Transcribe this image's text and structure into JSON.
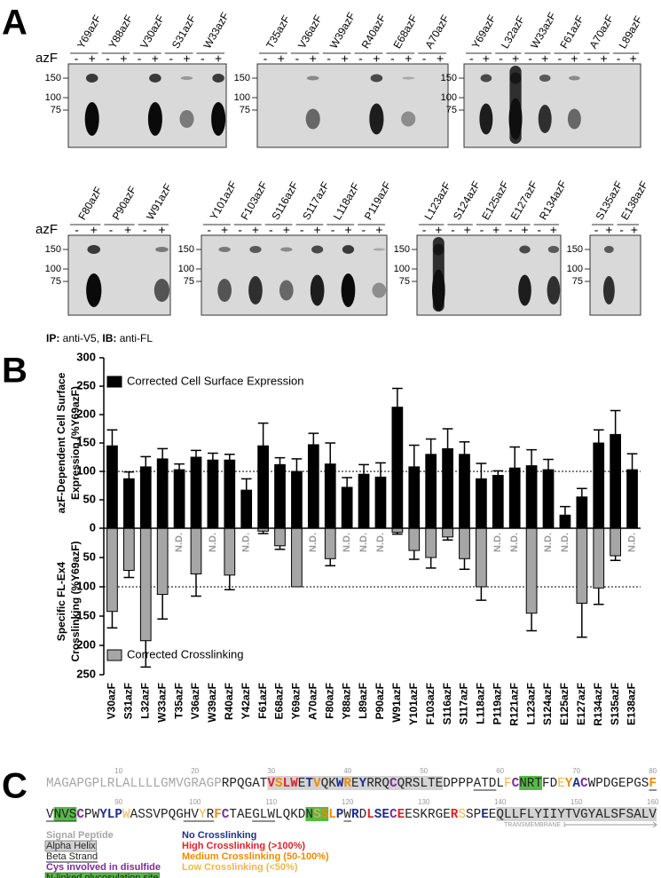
{
  "panel_a": {
    "label": "A",
    "row_label": "azF",
    "lane_signs": [
      "-",
      "+"
    ],
    "blots": [
      {
        "labels": [
          "Y69azF",
          "Y88azF",
          "V30azF",
          "S31azF",
          "W33azF"
        ],
        "markers": [
          "150",
          "100",
          "75"
        ]
      },
      {
        "labels": [
          "T35azF",
          "V36azF",
          "W39azF",
          "R40azF",
          "E68azF",
          "A70azF"
        ],
        "markers": [
          "150",
          "100",
          "75"
        ]
      },
      {
        "labels": [
          "Y69azF",
          "L32azF",
          "W33azF",
          "F61azF",
          "A70azF",
          "L89azF"
        ],
        "markers": [
          "150",
          "100",
          "75"
        ]
      },
      {
        "labels": [
          "F80azF",
          "P90azF",
          "W91azF"
        ],
        "markers": [
          "150",
          "100",
          "75"
        ]
      },
      {
        "labels": [
          "Y101azF",
          "F103azF",
          "S116azF",
          "S117azF",
          "L118azF",
          "P119azF"
        ],
        "markers": [
          "150",
          "100",
          "75"
        ]
      },
      {
        "labels": [
          "L123azF",
          "S124azF",
          "E125azF",
          "E127azF",
          "R134azF"
        ],
        "markers": [
          "150",
          "100",
          "75"
        ]
      },
      {
        "labels": [
          "S135azF",
          "E138azF"
        ],
        "markers": [
          "150",
          "100",
          "75"
        ]
      }
    ],
    "caption": [
      {
        "text": "IP:",
        "bold": true
      },
      {
        "text": " anti-V5, ",
        "bold": false
      },
      {
        "text": "IB:",
        "bold": true
      },
      {
        "text": " anti-FL",
        "bold": false
      }
    ]
  },
  "chart_data": {
    "type": "bar",
    "label": "B",
    "categories": [
      "V30azF",
      "S31azF",
      "L32azF",
      "W33azF",
      "T35azF",
      "V36azF",
      "W39azF",
      "R40azF",
      "Y42azF",
      "F61azF",
      "E68azF",
      "Y69azF",
      "A70azF",
      "F80azF",
      "Y88azF",
      "L89azF",
      "P90azF",
      "W91azF",
      "Y101azF",
      "F103azF",
      "S116azF",
      "S117azF",
      "L118azF",
      "P119azF",
      "R121azF",
      "L123azF",
      "S124azF",
      "E125azF",
      "E127azF",
      "R134azF",
      "S135azF",
      "E138azF"
    ],
    "series": [
      {
        "name": "Corrected Cell Surface Expression",
        "color": "#000000",
        "axis": "y",
        "values": [
          145,
          87,
          108,
          122,
          103,
          125,
          120,
          120,
          67,
          145,
          112,
          100,
          147,
          113,
          72,
          95,
          90,
          213,
          108,
          130,
          140,
          130,
          87,
          93,
          106,
          110,
          103,
          23,
          55,
          150,
          165,
          103
        ],
        "errors": [
          28,
          12,
          18,
          18,
          10,
          12,
          12,
          10,
          20,
          40,
          12,
          22,
          20,
          37,
          17,
          17,
          25,
          33,
          38,
          27,
          35,
          22,
          27,
          8,
          37,
          28,
          18,
          15,
          15,
          23,
          42,
          28
        ]
      },
      {
        "name": "Corrected Crosslinking",
        "color": "#a6a6a6",
        "axis": "y2",
        "na_label": "N.D.",
        "values": [
          142,
          72,
          192,
          113,
          null,
          78,
          null,
          80,
          null,
          5,
          30,
          100,
          null,
          52,
          null,
          null,
          null,
          7,
          38,
          50,
          15,
          52,
          100,
          null,
          null,
          145,
          null,
          null,
          128,
          102,
          47,
          null
        ],
        "errors": [
          28,
          12,
          45,
          42,
          null,
          38,
          null,
          25,
          null,
          4,
          6,
          null,
          null,
          12,
          null,
          null,
          null,
          3,
          15,
          18,
          5,
          18,
          23,
          null,
          null,
          30,
          null,
          null,
          58,
          28,
          8,
          null
        ]
      }
    ],
    "ylabel": [
      "azF-Dependent Cell Surface",
      "Expression (%Y69azF)"
    ],
    "y2label": [
      "Specific FL-Ex4",
      "Crosslinking (%Y69azF)"
    ],
    "ylim": [
      0,
      300
    ],
    "yticks": [
      0,
      50,
      100,
      150,
      200,
      250,
      300
    ],
    "y2lim": [
      0,
      250
    ],
    "y2ticks": [
      50,
      100,
      150,
      200,
      250
    ],
    "y2_inverted": true,
    "ref_line": 100,
    "y2_ref_line": 100
  },
  "panel_c": {
    "label": "C",
    "lines": [
      {
        "segments": [
          {
            "text": "MAGAPGPLRLALLLLGMVGRAGP",
            "style": "signal"
          },
          {
            "text": "RPQGAT",
            "style": "plain"
          },
          {
            "text": "V",
            "style": "helix high"
          },
          {
            "text": "S",
            "style": "helix medium"
          },
          {
            "text": "LW",
            "style": "helix high"
          },
          {
            "text": "E",
            "style": "helix plain"
          },
          {
            "text": "T",
            "style": "helix none"
          },
          {
            "text": "V",
            "style": "helix medium"
          },
          {
            "text": "QK",
            "style": "helix plain"
          },
          {
            "text": "W",
            "style": "helix none"
          },
          {
            "text": "R",
            "style": "helix medium"
          },
          {
            "text": "E",
            "style": "helix plain"
          },
          {
            "text": "Y",
            "style": "helix none"
          },
          {
            "text": "RRQ",
            "style": "helix plain"
          },
          {
            "text": "C",
            "style": "helix cys"
          },
          {
            "text": "QRSLTE",
            "style": "helix plain"
          },
          {
            "text": "DPPP",
            "style": "plain"
          },
          {
            "text": "ATD",
            "style": "strand plain"
          },
          {
            "text": "L",
            "style": "plain"
          },
          {
            "text": "F",
            "style": "low"
          },
          {
            "text": "C",
            "style": "cys"
          },
          {
            "text": "NRT",
            "style": "glyco plain"
          },
          {
            "text": "FD",
            "style": "plain"
          },
          {
            "text": "E",
            "style": "low"
          },
          {
            "text": "Y",
            "style": "medium"
          },
          {
            "text": "A",
            "style": "none"
          },
          {
            "text": "C",
            "style": "cys"
          },
          {
            "text": "WPDGEPGS",
            "style": "plain"
          },
          {
            "text": "F",
            "style": "strand medium"
          }
        ]
      },
      {
        "segments": [
          {
            "text": "V",
            "style": "strand plain"
          },
          {
            "text": "NVS",
            "style": "glyco strand plain"
          },
          {
            "text": "C",
            "style": "cys"
          },
          {
            "text": "PW",
            "style": "plain"
          },
          {
            "text": "YLP",
            "style": "none"
          },
          {
            "text": "W",
            "style": "low"
          },
          {
            "text": "ASSVPQG",
            "style": "plain"
          },
          {
            "text": "HV",
            "style": "strand plain"
          },
          {
            "text": "Y",
            "style": "strand low"
          },
          {
            "text": "R",
            "style": "strand plain"
          },
          {
            "text": "F",
            "style": "medium"
          },
          {
            "text": "C",
            "style": "cys"
          },
          {
            "text": "TAE",
            "style": "plain"
          },
          {
            "text": "GLW",
            "style": "strand plain"
          },
          {
            "text": "LQKD",
            "style": "plain"
          },
          {
            "text": "N",
            "style": "glyco plain"
          },
          {
            "text": "S",
            "style": "glyco low"
          },
          {
            "text": "S",
            "style": "glyco medium"
          },
          {
            "text": "L",
            "style": "medium"
          },
          {
            "text": "P",
            "style": "none"
          },
          {
            "text": "W",
            "style": "strand plain"
          },
          {
            "text": "R",
            "style": "none"
          },
          {
            "text": "D",
            "style": "plain"
          },
          {
            "text": "L",
            "style": "high"
          },
          {
            "text": "SE",
            "style": "none"
          },
          {
            "text": "C",
            "style": "cys"
          },
          {
            "text": "E",
            "style": "high"
          },
          {
            "text": "ESKRGE",
            "style": "plain"
          },
          {
            "text": "R",
            "style": "high"
          },
          {
            "text": "S",
            "style": "low"
          },
          {
            "text": "SP",
            "style": "plain"
          },
          {
            "text": "E",
            "style": "none"
          },
          {
            "text": "E",
            "style": "plain"
          },
          {
            "text": "QLLFLYIIYTVGYALSFSALV",
            "style": "helix plain"
          }
        ]
      }
    ],
    "residues_per_line": 80,
    "position_ticks": [
      10,
      20,
      30,
      40,
      50,
      60,
      70,
      80,
      90,
      100,
      110,
      120,
      130,
      140,
      150,
      160
    ],
    "transmembrane_label": "TRANSMEMBRANE 1",
    "legend": [
      {
        "text": "Signal Peptide",
        "style": "signal"
      },
      {
        "text": "Alpha Helix",
        "style": "helix plain"
      },
      {
        "text": "Beta Strand",
        "style": "strand plain"
      },
      {
        "text": "Cys involved in disulfide",
        "style": "cys"
      },
      {
        "text": "N-linked glycosylation site",
        "style": "glyco plain"
      },
      {
        "text": "No Crosslinking",
        "style": "none"
      },
      {
        "text": "High Crosslinking (>100%)",
        "style": "high"
      },
      {
        "text": "Medium Crosslinking (50-100%)",
        "style": "medium"
      },
      {
        "text": "Low Crosslinking (<50%)",
        "style": "low"
      }
    ]
  }
}
